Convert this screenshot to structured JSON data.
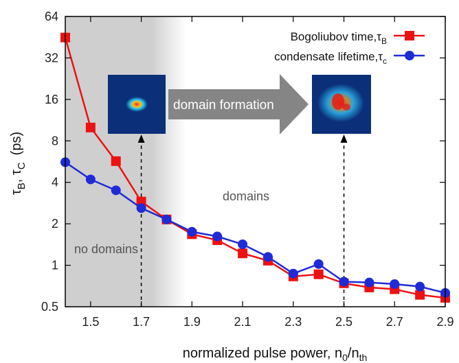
{
  "chart_data": {
    "type": "line",
    "xlabel_main": "normalized pulse power, n",
    "xlabel_sub0": "0",
    "xlabel_slash": "/n",
    "xlabel_sub1": "th",
    "ylabel_tau1": "τ",
    "ylabel_sub1": "B",
    "ylabel_sep": ", τ",
    "ylabel_sub2": "C",
    "ylabel_unit": "(ps)",
    "xlim": [
      1.4,
      2.9
    ],
    "ylim": [
      0.5,
      64
    ],
    "yscale": "log2",
    "x_ticks": [
      1.5,
      1.7,
      1.9,
      2.1,
      2.3,
      2.5,
      2.7,
      2.9
    ],
    "y_ticks": [
      0.5,
      1,
      2,
      4,
      8,
      16,
      32,
      64
    ],
    "x_tick_labels": [
      "1.5",
      "1.7",
      "1.9",
      "2.1",
      "2.3",
      "2.5",
      "2.7",
      "2.9"
    ],
    "y_tick_labels": [
      "0.5",
      "1",
      "2",
      "4",
      "8",
      "16",
      "32",
      "64"
    ],
    "shaded_region": {
      "x_start": 1.4,
      "x_end": 1.8
    },
    "annotations": {
      "no_domains": "no domains",
      "domains": "domains",
      "domain_formation": "domain formation"
    },
    "dashed_markers_x": [
      1.7,
      2.5
    ],
    "legend_position": "top-right",
    "series": [
      {
        "name_prefix": "Bogoliubov time,τ",
        "name_sub": "B",
        "color": "#ee1111",
        "marker": "square",
        "x": [
          1.4,
          1.5,
          1.6,
          1.7,
          1.8,
          1.9,
          2.0,
          2.1,
          2.2,
          2.3,
          2.4,
          2.5,
          2.6,
          2.7,
          2.8,
          2.9
        ],
        "y": [
          45,
          10,
          5.7,
          2.9,
          2.15,
          1.68,
          1.52,
          1.22,
          1.08,
          0.83,
          0.86,
          0.74,
          0.69,
          0.67,
          0.61,
          0.58
        ]
      },
      {
        "name_prefix": "condensate lifetime,τ",
        "name_sub": "c",
        "color": "#1f2bd6",
        "marker": "circle",
        "x": [
          1.4,
          1.5,
          1.6,
          1.7,
          1.8,
          1.9,
          2.0,
          2.1,
          2.2,
          2.3,
          2.4,
          2.5,
          2.6,
          2.7,
          2.8,
          2.9
        ],
        "y": [
          5.6,
          4.2,
          3.5,
          2.6,
          2.15,
          1.75,
          1.62,
          1.42,
          1.15,
          0.87,
          1.02,
          0.76,
          0.75,
          0.73,
          0.7,
          0.63
        ]
      }
    ]
  }
}
